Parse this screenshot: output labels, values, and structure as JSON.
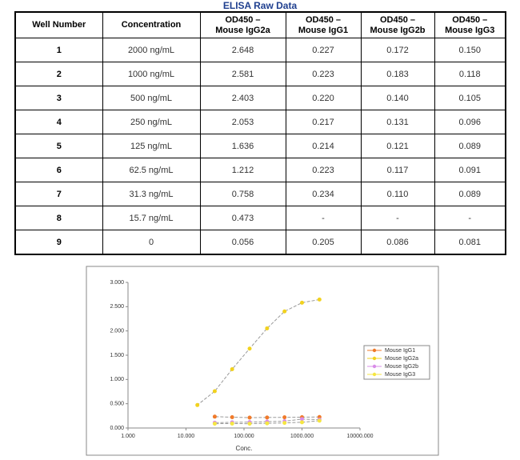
{
  "title": "ELISA Raw Data",
  "table": {
    "header": [
      "Well Number",
      "Concentration",
      "OD450 –\nMouse IgG2a",
      "OD450 –\nMouse IgG1",
      "OD450 –\nMouse IgG2b",
      "OD450 –\nMouse IgG3"
    ],
    "rows": [
      [
        "1",
        "2000 ng/mL",
        "2.648",
        "0.227",
        "0.172",
        "0.150"
      ],
      [
        "2",
        "1000 ng/mL",
        "2.581",
        "0.223",
        "0.183",
        "0.118"
      ],
      [
        "3",
        "500 ng/mL",
        "2.403",
        "0.220",
        "0.140",
        "0.105"
      ],
      [
        "4",
        "250 ng/mL",
        "2.053",
        "0.217",
        "0.131",
        "0.096"
      ],
      [
        "5",
        "125 ng/mL",
        "1.636",
        "0.214",
        "0.121",
        "0.089"
      ],
      [
        "6",
        "62.5 ng/mL",
        "1.212",
        "0.223",
        "0.117",
        "0.091"
      ],
      [
        "7",
        "31.3 ng/mL",
        "0.758",
        "0.234",
        "0.110",
        "0.089"
      ],
      [
        "8",
        "15.7 ng/mL",
        "0.473",
        "-",
        "-",
        "-"
      ],
      [
        "9",
        "0",
        "0.056",
        "0.205",
        "0.086",
        "0.081"
      ]
    ]
  },
  "chart_data": {
    "type": "scatter-line",
    "x_label": "Conc.",
    "x_log": true,
    "xlim": [
      1,
      10000
    ],
    "xticks": [
      {
        "value": 1,
        "label": "1.000"
      },
      {
        "value": 10,
        "label": "10.000"
      },
      {
        "value": 100,
        "label": "100.000"
      },
      {
        "value": 1000,
        "label": "1000.000"
      },
      {
        "value": 10000,
        "label": "10000.000"
      }
    ],
    "ylim": [
      0,
      3
    ],
    "yticks": [
      {
        "value": 0,
        "label": "0.000"
      },
      {
        "value": 0.5,
        "label": "0.500"
      },
      {
        "value": 1,
        "label": "1.000"
      },
      {
        "value": 1.5,
        "label": "1.500"
      },
      {
        "value": 2,
        "label": "2.000"
      },
      {
        "value": 2.5,
        "label": "2.500"
      },
      {
        "value": 3,
        "label": "3.000"
      }
    ],
    "line_color": "#9a9a9a",
    "x": [
      2000,
      1000,
      500,
      250,
      125,
      62.5,
      31.3,
      15.7
    ],
    "series": [
      {
        "name": "Mouse IgG1",
        "color": "#f07a2a",
        "values": [
          0.227,
          0.223,
          0.22,
          0.217,
          0.214,
          0.223,
          0.234,
          null
        ]
      },
      {
        "name": "Mouse IgG2a",
        "color": "#f2d21e",
        "values": [
          2.648,
          2.581,
          2.403,
          2.053,
          1.636,
          1.212,
          0.758,
          0.473
        ]
      },
      {
        "name": "Mouse IgG2b",
        "color": "#d98ce8",
        "values": [
          0.172,
          0.183,
          0.14,
          0.131,
          0.121,
          0.117,
          0.11,
          null
        ]
      },
      {
        "name": "Mouse IgG3",
        "color": "#f5e642",
        "values": [
          0.15,
          0.118,
          0.105,
          0.096,
          0.089,
          0.091,
          0.089,
          null
        ]
      }
    ]
  }
}
